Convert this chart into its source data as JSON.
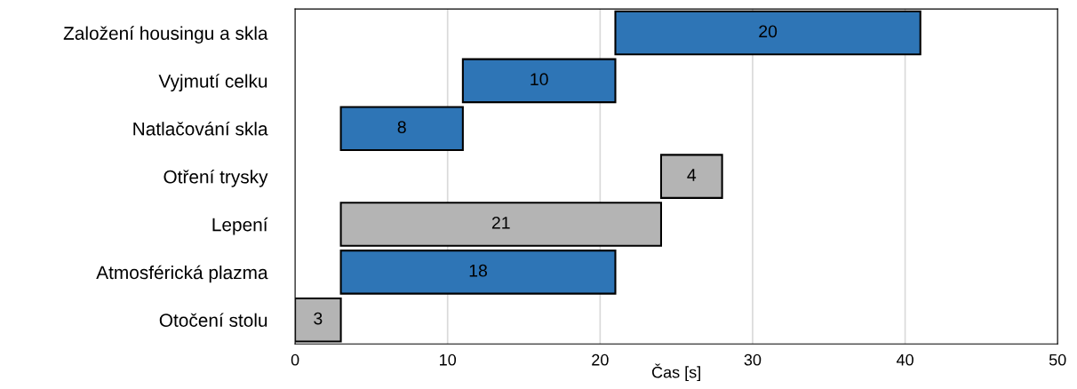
{
  "chart_data": {
    "type": "bar",
    "orientation": "horizontal",
    "xlabel": "Čas [s]",
    "categories": [
      "Založení housingu a skla",
      "Vyjmutí celku",
      "Natlačování skla",
      "Otření trysky",
      "Lepení",
      "Atmosférická plazma",
      "Otočení stolu"
    ],
    "values": [
      20,
      10,
      8,
      4,
      21,
      18,
      3
    ],
    "base": [
      21,
      11,
      3,
      24,
      3,
      3,
      0
    ],
    "colors": [
      "#2e75b6",
      "#2e75b6",
      "#2e75b6",
      "#b4b4b4",
      "#b4b4b4",
      "#2e75b6",
      "#b4b4b4"
    ],
    "xlim": [
      0,
      50
    ],
    "xticks": [
      0,
      10,
      20,
      30,
      40,
      50
    ],
    "grid": "x",
    "data_labels": true
  }
}
